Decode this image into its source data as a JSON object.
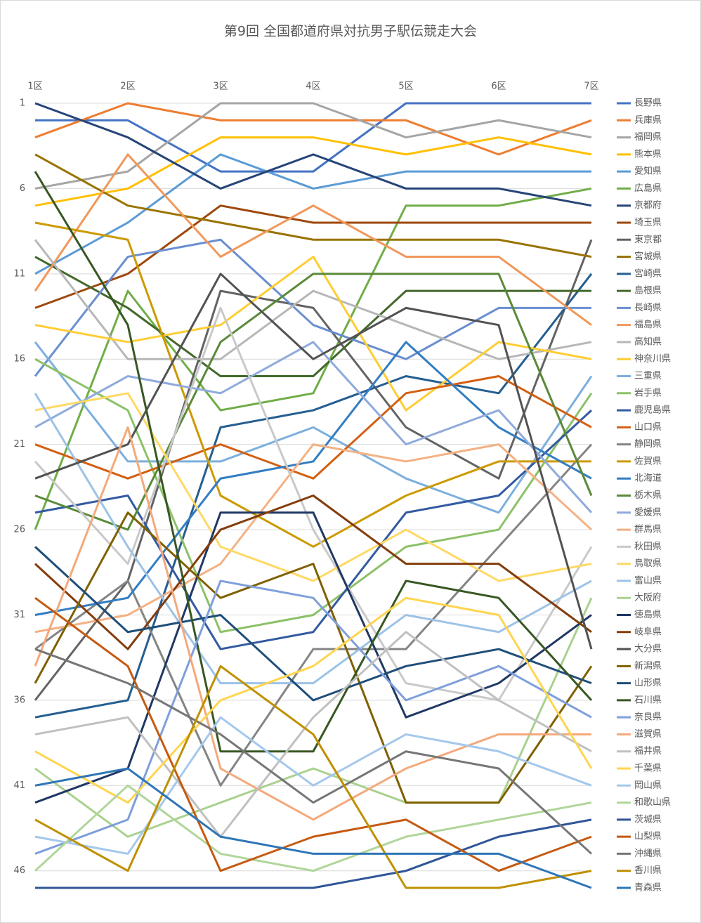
{
  "chart_data": {
    "type": "line",
    "title": "第9回 全国都道府県対抗男子駅伝競走大会",
    "categories": [
      "1区",
      "2区",
      "3区",
      "4区",
      "5区",
      "6区",
      "7区"
    ],
    "ylim": [
      1,
      47
    ],
    "y_reversed": true,
    "yticks": [
      1,
      6,
      11,
      16,
      21,
      26,
      31,
      36,
      41,
      46
    ],
    "grid": true,
    "legend": "right",
    "series": [
      {
        "name": "長野県",
        "color": "#4472c4",
        "values": [
          2,
          2,
          5,
          5,
          1,
          1,
          1
        ]
      },
      {
        "name": "兵庫県",
        "color": "#ed7d31",
        "values": [
          3,
          1,
          2,
          2,
          2,
          4,
          2
        ]
      },
      {
        "name": "福岡県",
        "color": "#a5a5a5",
        "values": [
          6,
          5,
          1,
          1,
          3,
          2,
          3
        ]
      },
      {
        "name": "熊本県",
        "color": "#ffc000",
        "values": [
          7,
          6,
          3,
          3,
          4,
          3,
          4
        ]
      },
      {
        "name": "愛知県",
        "color": "#5b9bd5",
        "values": [
          11,
          8,
          4,
          6,
          5,
          5,
          5
        ]
      },
      {
        "name": "広島県",
        "color": "#70ad47",
        "values": [
          26,
          12,
          19,
          18,
          7,
          7,
          6
        ]
      },
      {
        "name": "京都府",
        "color": "#264478",
        "values": [
          1,
          3,
          6,
          4,
          6,
          6,
          7
        ]
      },
      {
        "name": "埼玉県",
        "color": "#9e480e",
        "values": [
          13,
          11,
          7,
          8,
          8,
          8,
          8
        ]
      },
      {
        "name": "東京都",
        "color": "#636363",
        "values": [
          36,
          29,
          12,
          13,
          20,
          23,
          9
        ]
      },
      {
        "name": "宮城県",
        "color": "#997300",
        "values": [
          4,
          7,
          8,
          9,
          9,
          9,
          10
        ]
      },
      {
        "name": "宮崎県",
        "color": "#255e91",
        "values": [
          37,
          36,
          20,
          19,
          17,
          18,
          11
        ]
      },
      {
        "name": "島根県",
        "color": "#43682b",
        "values": [
          10,
          13,
          17,
          17,
          12,
          12,
          12
        ]
      },
      {
        "name": "長崎県",
        "color": "#698ed0",
        "values": [
          17,
          10,
          9,
          14,
          16,
          13,
          13
        ]
      },
      {
        "name": "福島県",
        "color": "#f1975a",
        "values": [
          12,
          4,
          10,
          7,
          10,
          10,
          14
        ]
      },
      {
        "name": "高知県",
        "color": "#b7b7b7",
        "values": [
          9,
          16,
          16,
          12,
          14,
          16,
          15
        ]
      },
      {
        "name": "神奈川県",
        "color": "#ffcd33",
        "values": [
          14,
          15,
          14,
          10,
          19,
          15,
          16
        ]
      },
      {
        "name": "三重県",
        "color": "#7cafdd",
        "values": [
          15,
          22,
          22,
          20,
          23,
          25,
          17
        ]
      },
      {
        "name": "岩手県",
        "color": "#8cc168",
        "values": [
          16,
          19,
          32,
          31,
          27,
          26,
          18
        ]
      },
      {
        "name": "鹿児島県",
        "color": "#335aa1",
        "values": [
          25,
          24,
          33,
          32,
          25,
          24,
          19
        ]
      },
      {
        "name": "山口県",
        "color": "#d26012",
        "values": [
          21,
          23,
          21,
          23,
          18,
          17,
          20
        ]
      },
      {
        "name": "静岡県",
        "color": "#848484",
        "values": [
          33,
          29,
          41,
          33,
          33,
          27,
          21
        ]
      },
      {
        "name": "佐賀県",
        "color": "#cc9a00",
        "values": [
          8,
          9,
          24,
          27,
          24,
          22,
          22
        ]
      },
      {
        "name": "北海道",
        "color": "#327dc2",
        "values": [
          31,
          30,
          23,
          22,
          15,
          20,
          23
        ]
      },
      {
        "name": "栃木県",
        "color": "#5a8a39",
        "values": [
          24,
          26,
          15,
          11,
          11,
          11,
          24
        ]
      },
      {
        "name": "愛媛県",
        "color": "#8faadc",
        "values": [
          20,
          17,
          18,
          15,
          21,
          19,
          25
        ]
      },
      {
        "name": "群馬県",
        "color": "#f4b183",
        "values": [
          32,
          31,
          28,
          21,
          22,
          21,
          26
        ]
      },
      {
        "name": "秋田県",
        "color": "#c9c9c9",
        "values": [
          22,
          28,
          13,
          26,
          35,
          36,
          27
        ]
      },
      {
        "name": "鳥取県",
        "color": "#ffd966",
        "values": [
          19,
          18,
          27,
          29,
          26,
          29,
          28
        ]
      },
      {
        "name": "富山県",
        "color": "#9dc3e6",
        "values": [
          18,
          27,
          35,
          35,
          31,
          32,
          29
        ]
      },
      {
        "name": "大阪府",
        "color": "#a9d18e",
        "values": [
          40,
          44,
          42,
          40,
          42,
          42,
          30
        ]
      },
      {
        "name": "徳島県",
        "color": "#203864",
        "values": [
          42,
          40,
          25,
          25,
          37,
          35,
          31
        ]
      },
      {
        "name": "岐阜県",
        "color": "#843c0c",
        "values": [
          28,
          33,
          26,
          24,
          28,
          28,
          32
        ]
      },
      {
        "name": "大分県",
        "color": "#525252",
        "values": [
          23,
          21,
          11,
          16,
          13,
          14,
          33
        ]
      },
      {
        "name": "新潟県",
        "color": "#7f6000",
        "values": [
          35,
          25,
          30,
          28,
          42,
          42,
          34
        ]
      },
      {
        "name": "山形県",
        "color": "#1f4e79",
        "values": [
          27,
          32,
          31,
          36,
          34,
          33,
          35
        ]
      },
      {
        "name": "石川県",
        "color": "#385723",
        "values": [
          5,
          14,
          39,
          39,
          29,
          30,
          36
        ]
      },
      {
        "name": "奈良県",
        "color": "#7f9fdb",
        "values": [
          45,
          43,
          29,
          30,
          36,
          34,
          37
        ]
      },
      {
        "name": "滋賀県",
        "color": "#f4a97a",
        "values": [
          34,
          20,
          40,
          43,
          40,
          38,
          38
        ]
      },
      {
        "name": "福井県",
        "color": "#c0c0c0",
        "values": [
          38,
          37,
          44,
          37,
          32,
          36,
          39
        ]
      },
      {
        "name": "千葉県",
        "color": "#ffd54f",
        "values": [
          39,
          42,
          36,
          34,
          30,
          31,
          40
        ]
      },
      {
        "name": "岡山県",
        "color": "#a4c8eb",
        "values": [
          44,
          45,
          37,
          41,
          38,
          39,
          41
        ]
      },
      {
        "name": "和歌山県",
        "color": "#b0d69a",
        "values": [
          46,
          41,
          45,
          46,
          44,
          43,
          42
        ]
      },
      {
        "name": "茨城県",
        "color": "#2f5597",
        "values": [
          47,
          47,
          47,
          47,
          46,
          44,
          43
        ]
      },
      {
        "name": "山梨県",
        "color": "#c55a11",
        "values": [
          30,
          34,
          46,
          44,
          43,
          46,
          44
        ]
      },
      {
        "name": "沖縄県",
        "color": "#767676",
        "values": [
          33,
          35,
          38,
          42,
          39,
          40,
          45
        ]
      },
      {
        "name": "香川県",
        "color": "#bf9000",
        "values": [
          43,
          46,
          34,
          38,
          47,
          47,
          46
        ]
      },
      {
        "name": "青森県",
        "color": "#2e75b6",
        "values": [
          41,
          40,
          44,
          45,
          45,
          45,
          47
        ]
      }
    ]
  }
}
